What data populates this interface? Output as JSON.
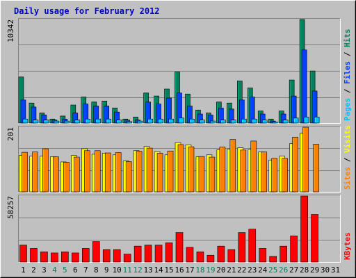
{
  "chart_data": {
    "type": "bar",
    "title": "Daily usage for February 2012",
    "days": [
      "1",
      "2",
      "3",
      "4",
      "5",
      "6",
      "7",
      "8",
      "9",
      "10",
      "11",
      "12",
      "13",
      "14",
      "15",
      "16",
      "17",
      "18",
      "19",
      "20",
      "21",
      "22",
      "23",
      "24",
      "25",
      "26",
      "27",
      "28",
      "29",
      "30",
      "31"
    ],
    "weekend_days": [
      "4",
      "5",
      "11",
      "12",
      "18",
      "19",
      "25",
      "26"
    ],
    "panels": [
      {
        "id": "hits-files-pages",
        "ymax_label": "10342",
        "ymax": 10342,
        "legend": [
          "Pages",
          "Files",
          "Hits"
        ],
        "series": [
          {
            "name": "Hits",
            "color": "#00805c",
            "values": [
              4600,
              2000,
              1000,
              400,
              700,
              1800,
              2600,
              2100,
              2200,
              1500,
              400,
              600,
              3000,
              2700,
              3400,
              5100,
              2900,
              1300,
              1000,
              2100,
              2000,
              4200,
              3500,
              1200,
              400,
              1200,
              4300,
              10342,
              5200,
              0,
              0
            ]
          },
          {
            "name": "Files",
            "color": "#0040ff",
            "values": [
              2300,
              1600,
              800,
              300,
              400,
              1000,
              1900,
              1700,
              1700,
              1100,
              300,
              300,
              2100,
              1900,
              2500,
              3000,
              1700,
              900,
              800,
              1500,
              1400,
              2300,
              2600,
              900,
              200,
              900,
              2700,
              7300,
              3200,
              0,
              0
            ]
          },
          {
            "name": "Pages",
            "color": "#00c0ff",
            "values": [
              400,
              300,
              300,
              200,
              200,
              300,
              400,
              400,
              400,
              300,
              150,
              200,
              400,
              400,
              400,
              500,
              400,
              300,
              200,
              300,
              300,
              400,
              400,
              300,
              100,
              300,
              500,
              600,
              600,
              0,
              0
            ]
          }
        ]
      },
      {
        "id": "visits-sites",
        "ymax_label": "201",
        "ymax": 201,
        "legend": [
          "Sites",
          "Visits"
        ],
        "series": [
          {
            "name": "Visits",
            "color": "#ffff00",
            "values": [
              113,
              111,
              111,
              109,
              93,
              113,
              134,
              117,
              120,
              115,
              96,
              128,
              141,
              125,
              115,
              153,
              146,
              109,
              115,
              131,
              133,
              137,
              132,
              124,
              99,
              111,
              150,
              182,
              0,
              0,
              0
            ]
          },
          {
            "name": "Sites",
            "color": "#ff8000",
            "values": [
              123,
              124,
              134,
              109,
              92,
              108,
              128,
              128,
              121,
              122,
              94,
              126,
              136,
              120,
              127,
              147,
              140,
              110,
              108,
              139,
              163,
              130,
              158,
              124,
              104,
              104,
              170,
              201,
              148,
              0,
              0
            ]
          }
        ]
      },
      {
        "id": "kbytes",
        "ymax_label": "58257",
        "ymax": 58257,
        "legend": [
          "KBytes"
        ],
        "series": [
          {
            "name": "KBytes",
            "color": "#ff0000",
            "values": [
              15000,
              12000,
              9000,
              8000,
              9000,
              8000,
              12000,
              18000,
              11000,
              11000,
              7000,
              14000,
              15000,
              15000,
              17000,
              26000,
              13000,
              9000,
              6000,
              14000,
              11000,
              26000,
              29000,
              12000,
              5000,
              14000,
              23000,
              58257,
              42000,
              0,
              0
            ]
          }
        ]
      }
    ]
  }
}
